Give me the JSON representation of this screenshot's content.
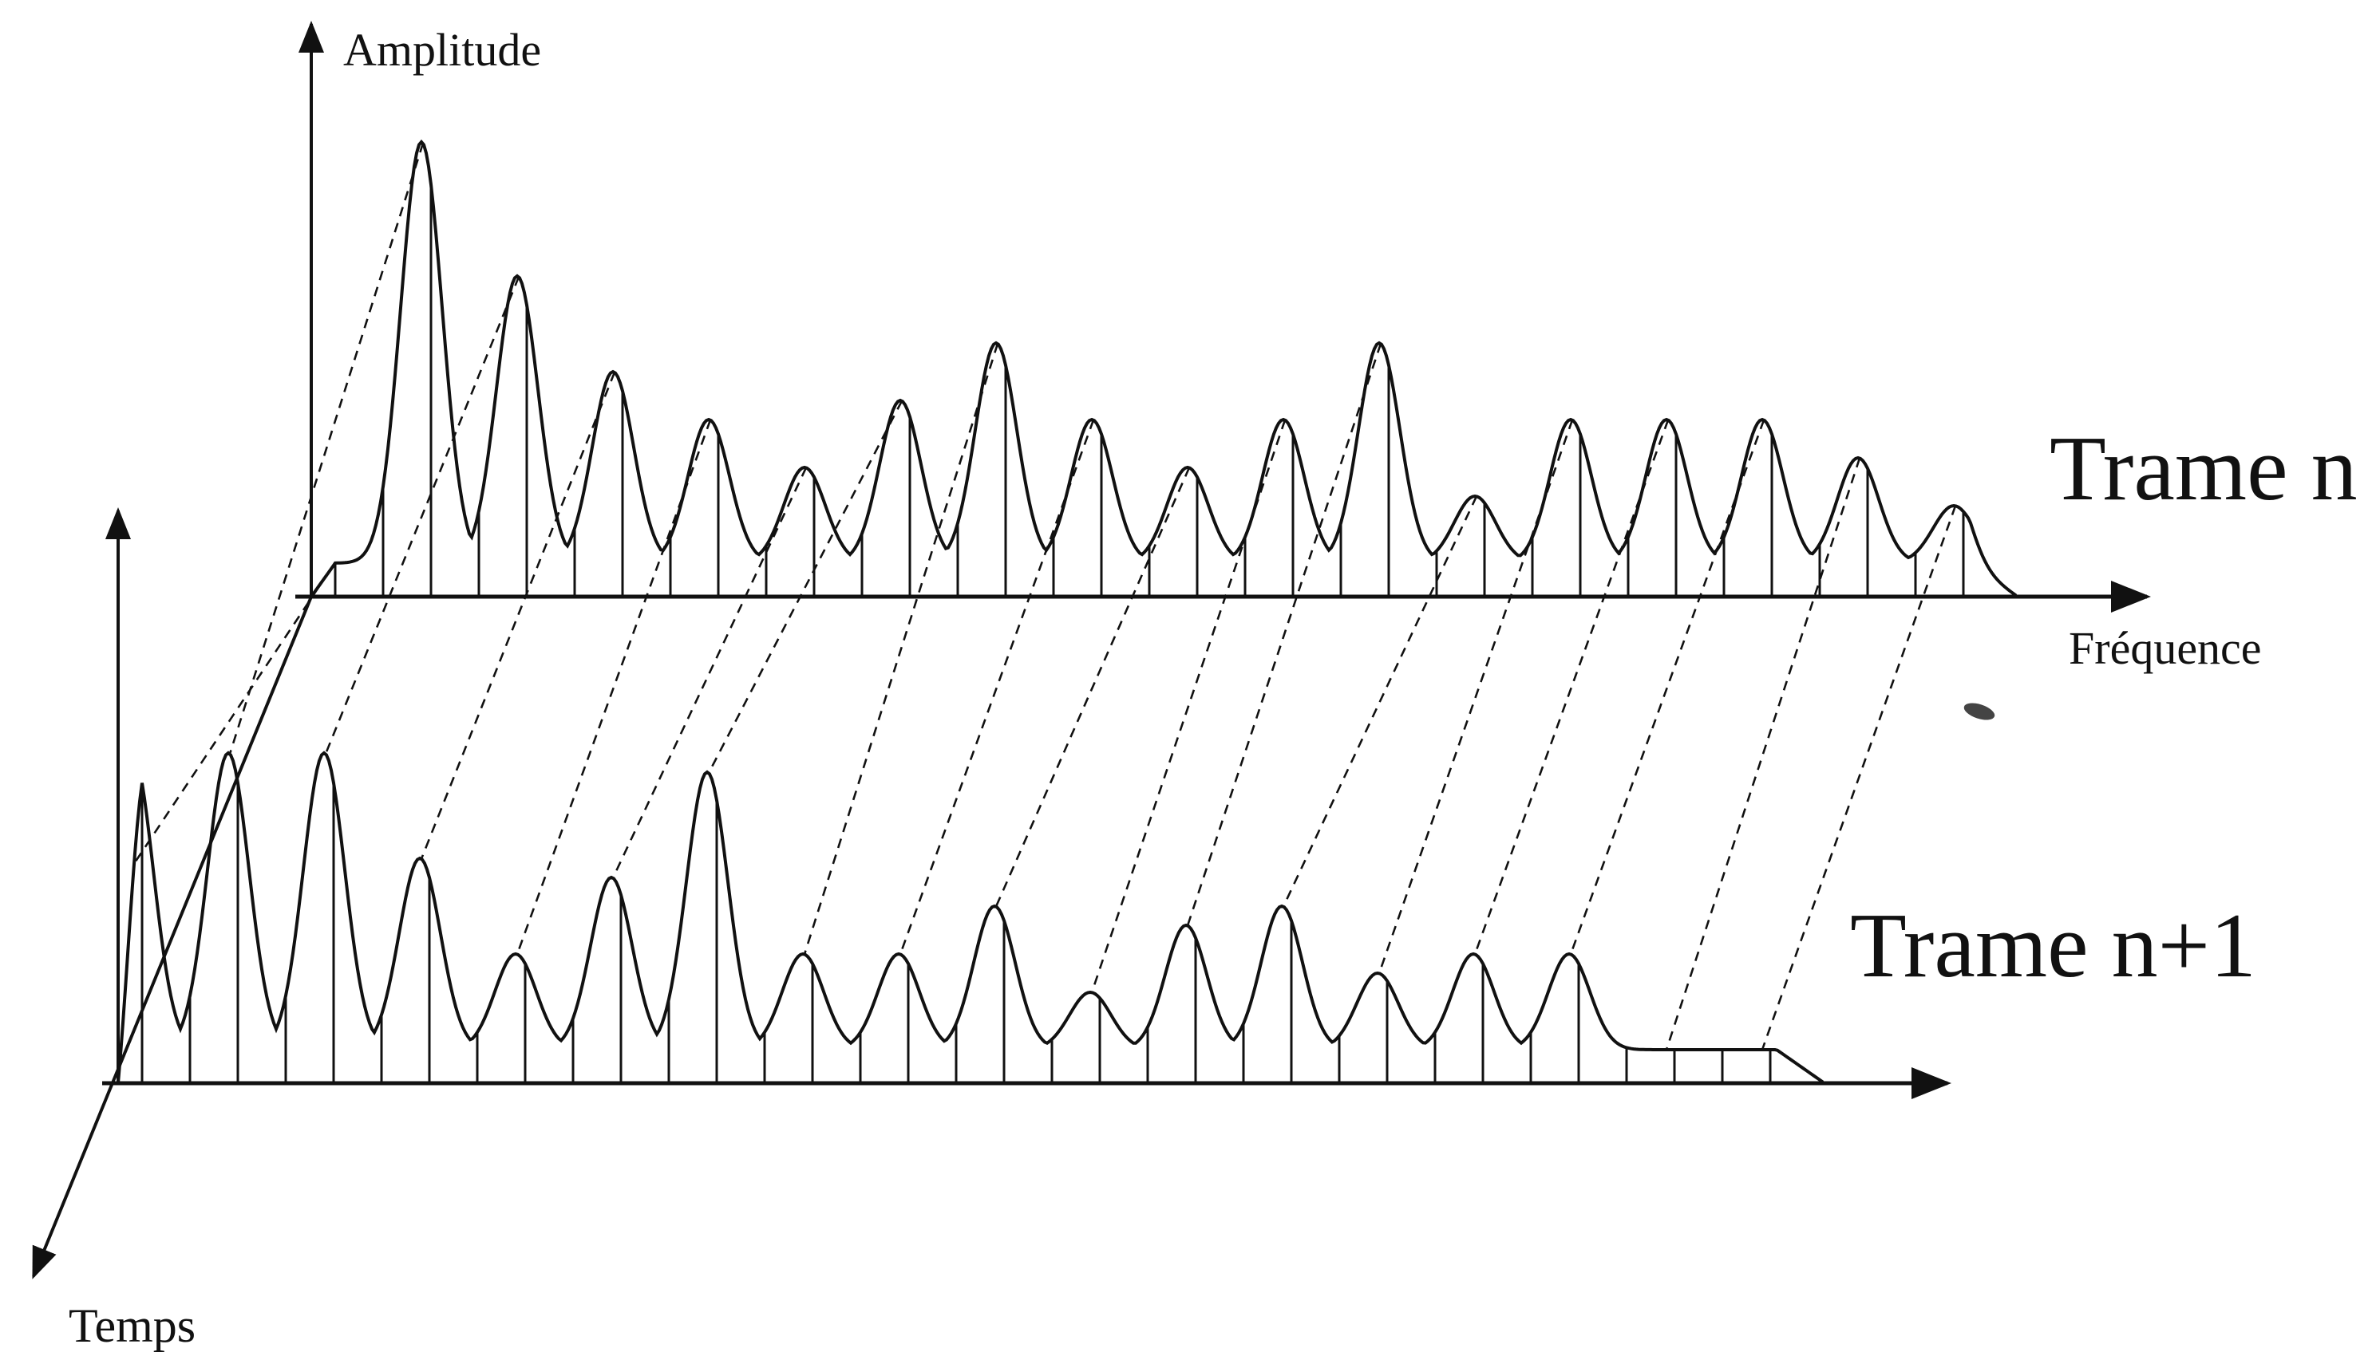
{
  "diagram": {
    "axis_labels": {
      "amplitude": "Amplitude",
      "frequence": "Fréquence",
      "temps": "Temps"
    },
    "frames": [
      {
        "label": "Trame n",
        "peaks": [
          0.0,
          0.88,
          0.6,
          0.4,
          0.3,
          0.2,
          0.34,
          0.46,
          0.3,
          0.2,
          0.3,
          0.46,
          0.14,
          0.3,
          0.3,
          0.3,
          0.22,
          0.12
        ]
      },
      {
        "label": "Trame n+1",
        "peaks": [
          0.62,
          0.62,
          0.62,
          0.4,
          0.2,
          0.36,
          0.58,
          0.2,
          0.2,
          0.3,
          0.12,
          0.26,
          0.3,
          0.16,
          0.2,
          0.2,
          0.0,
          0.0
        ]
      }
    ]
  }
}
